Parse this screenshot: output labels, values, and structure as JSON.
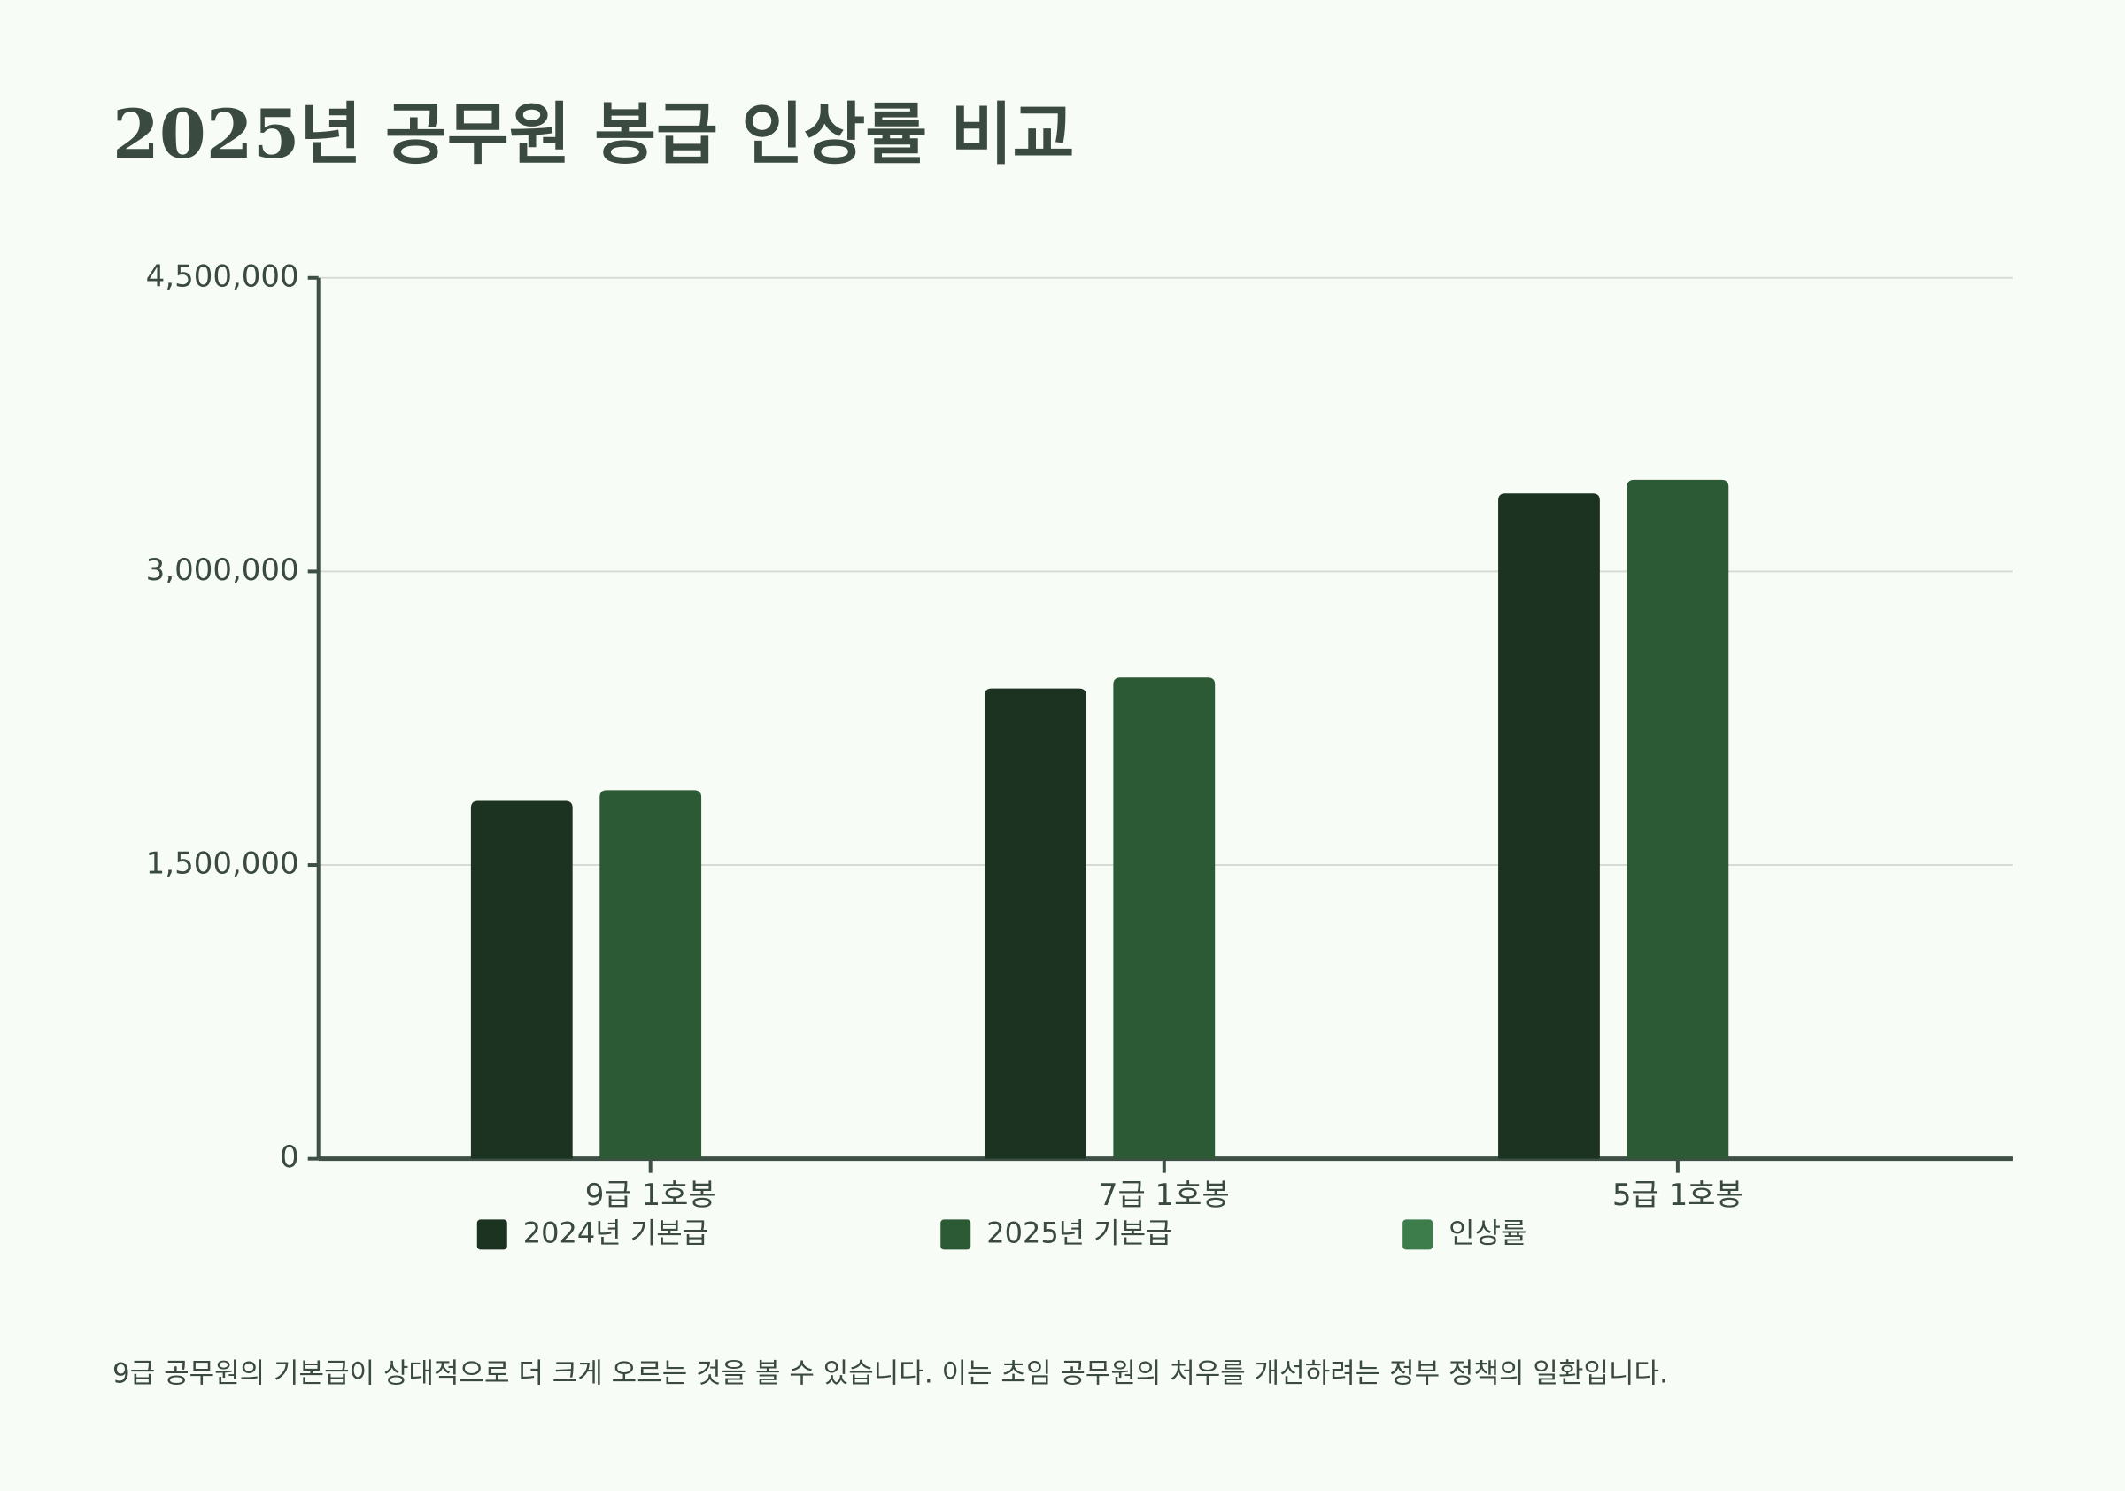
{
  "chart_data": {
    "type": "bar",
    "title": "2025년 공무원 봉급 인상률 비교",
    "categories": [
      "9급 1호봉",
      "7급 1호봉",
      "5급 1호봉"
    ],
    "series": [
      {
        "name": "2024년 기본급",
        "color": "#1b3320",
        "values": [
          1828000,
          2402000,
          3399000
        ]
      },
      {
        "name": "2025년 기본급",
        "color": "#2b5a35",
        "values": [
          1883000,
          2458000,
          3468000
        ]
      },
      {
        "name": "인상률",
        "color": "#3d7d4b",
        "values": [
          null,
          null,
          null
        ]
      }
    ],
    "ylim": [
      0,
      4500000
    ],
    "yticks": [
      0,
      {
        "value": 1500000,
        "label": "1,500,000"
      },
      {
        "value": 3000000,
        "label": "3,000,000"
      },
      {
        "value": 4500000,
        "label": "4,500,000"
      }
    ],
    "grid": true,
    "legend": "bottom",
    "note": "9급 공무원의 기본급이 상대적으로 더 크게 오르는 것을 볼 수 있습니다. 이는 초임 공무원의 처우를 개선하려는 정부 정책의 일환입니다."
  }
}
